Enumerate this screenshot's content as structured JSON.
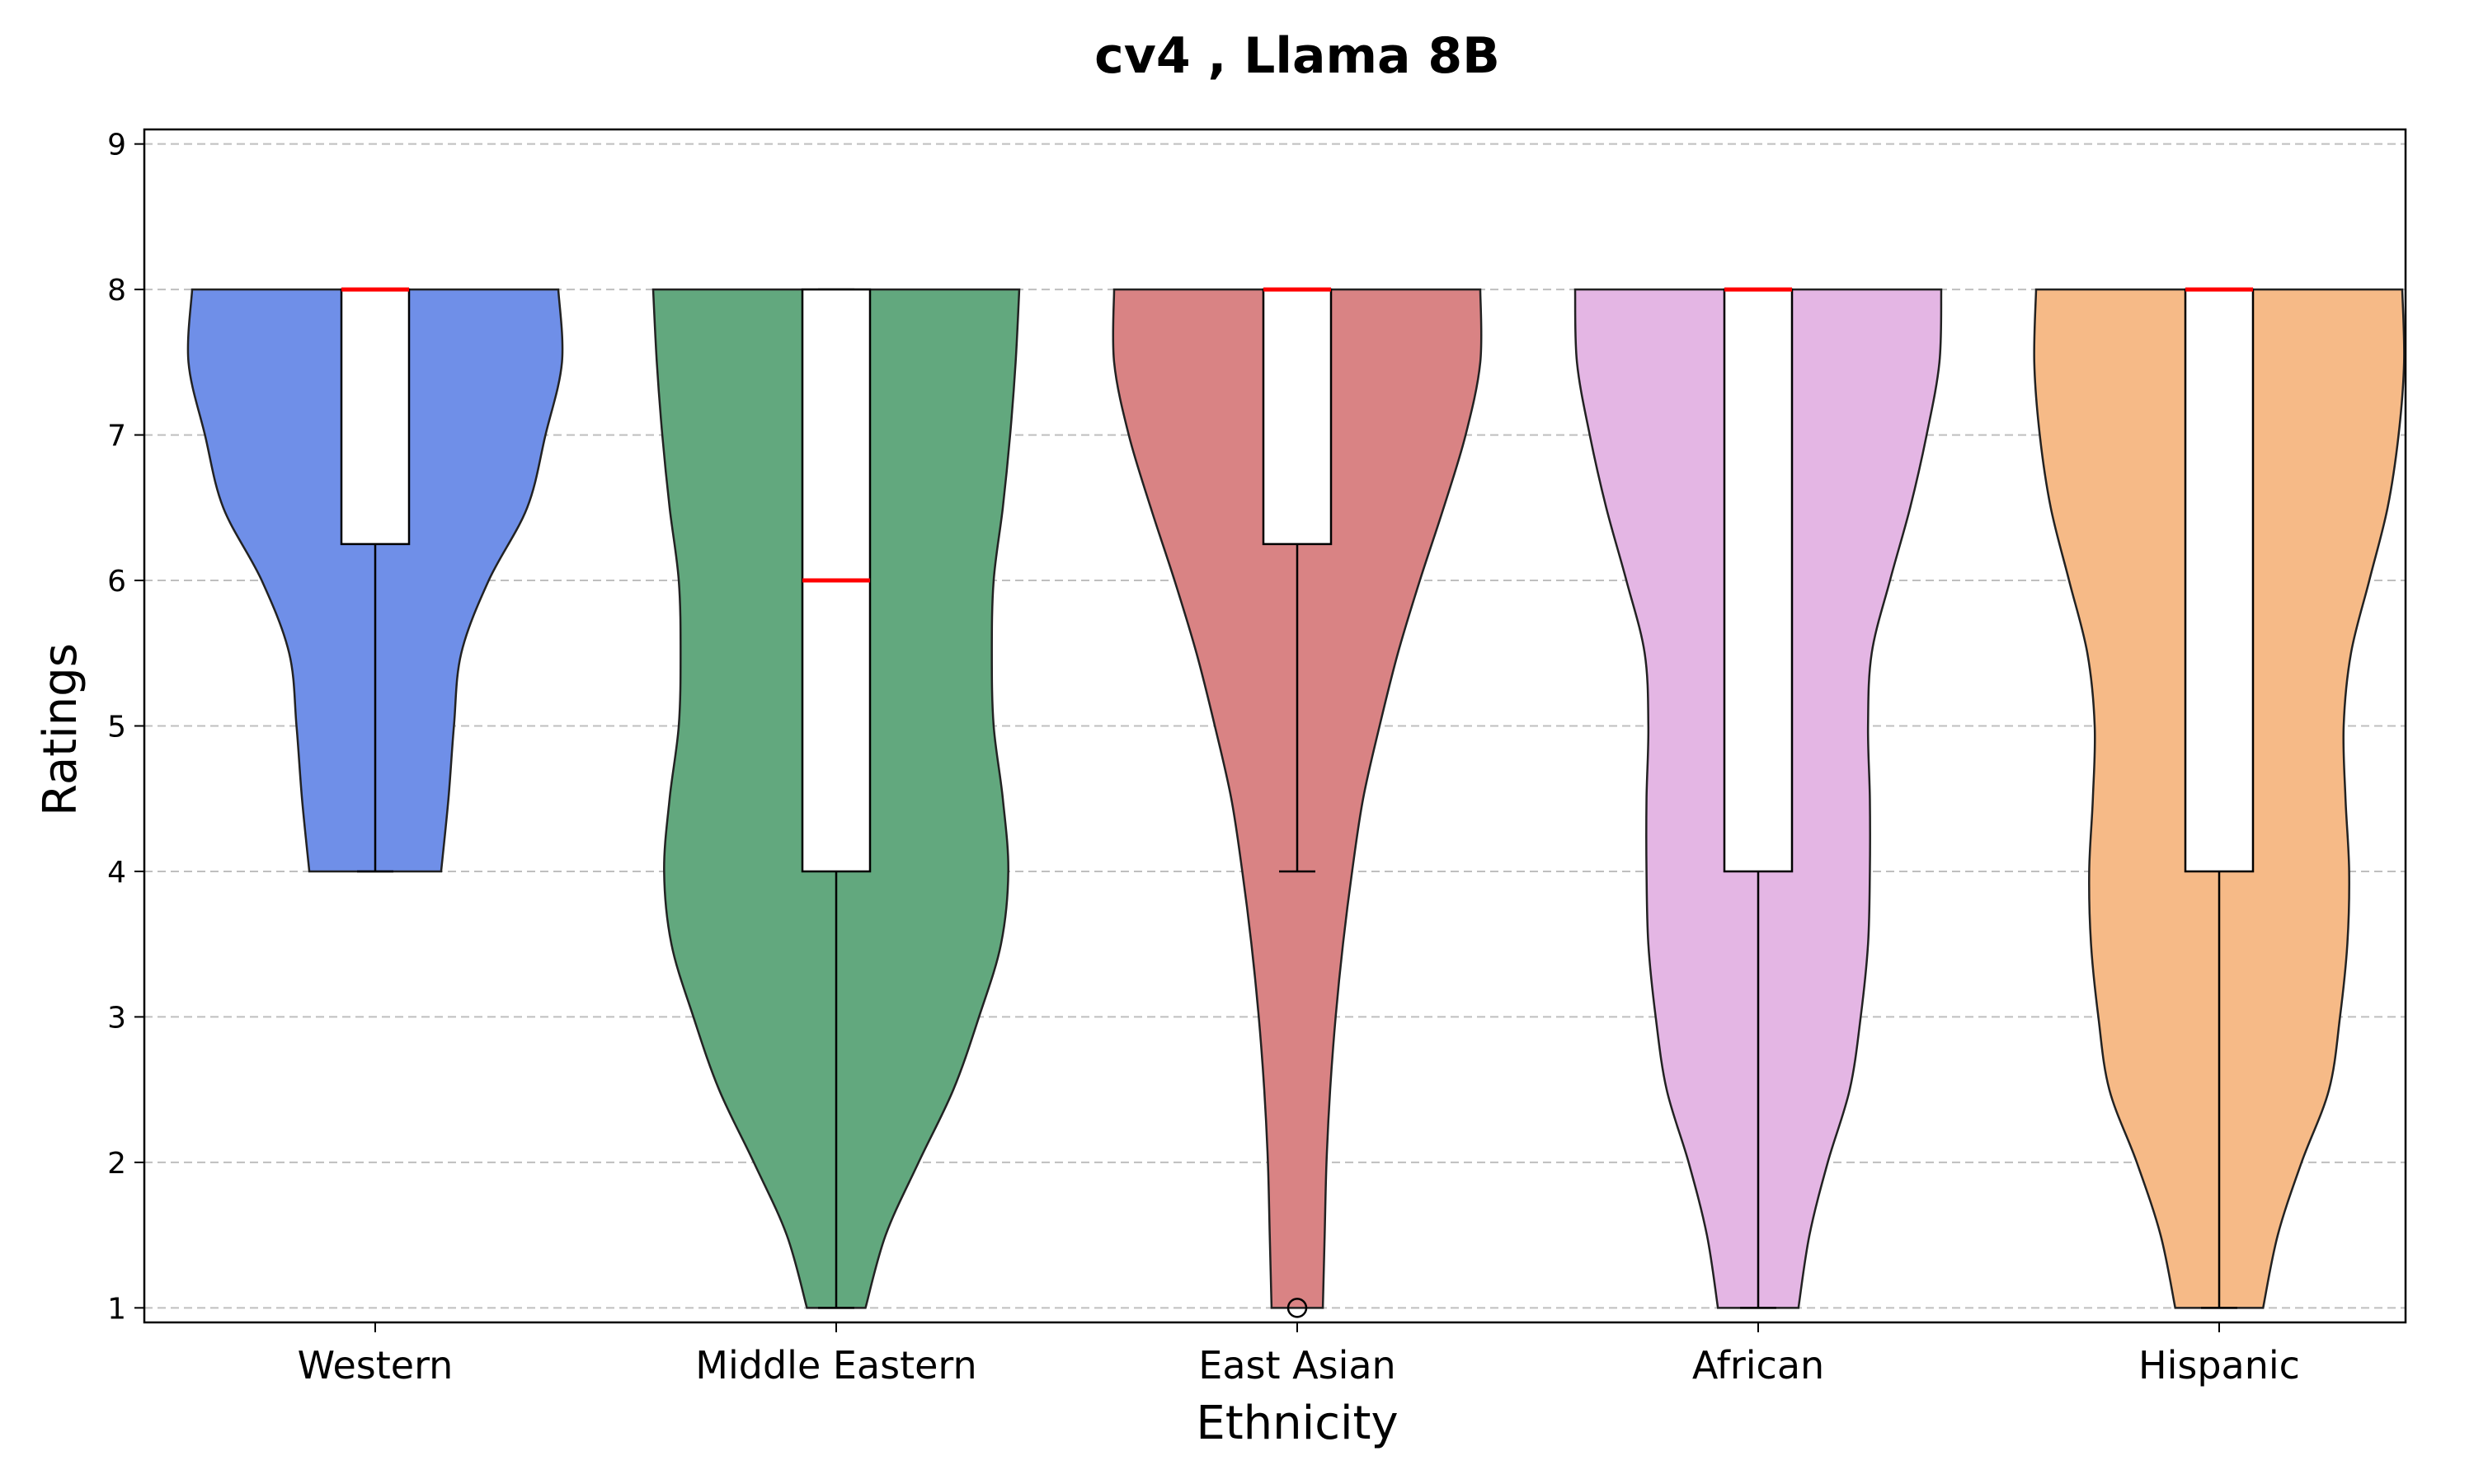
{
  "chart_data": {
    "type": "violin",
    "title": "cv4 , Llama 8B",
    "xlabel": "Ethnicity",
    "ylabel": "Ratings",
    "ylim": [
      0.9,
      9.1
    ],
    "yticks": [
      "1",
      "2",
      "3",
      "4",
      "5",
      "6",
      "7",
      "8",
      "9"
    ],
    "grid": "horizontal-dashed",
    "categories": [
      "Western",
      "Middle Eastern",
      "East Asian",
      "African",
      "Hispanic"
    ],
    "colors": [
      "#6f8fe8",
      "#62a87e",
      "#d98384",
      "#e4b6e4",
      "#f6ba87"
    ],
    "series": [
      {
        "name": "Western",
        "box": {
          "whisker_low": 4,
          "q1": 6.25,
          "median": 8,
          "q3": 8,
          "whisker_high": 8
        },
        "outliers": [],
        "density": [
          [
            4,
            0.36
          ],
          [
            4.5,
            0.4
          ],
          [
            5,
            0.43
          ],
          [
            5.5,
            0.47
          ],
          [
            6,
            0.62
          ],
          [
            6.5,
            0.83
          ],
          [
            7,
            0.93
          ],
          [
            7.5,
            1.02
          ],
          [
            8,
            1.0
          ]
        ]
      },
      {
        "name": "Middle Eastern",
        "box": {
          "whisker_low": 1,
          "q1": 4,
          "median": 6,
          "q3": 8,
          "whisker_high": 8
        },
        "outliers": [],
        "density": [
          [
            1,
            0.16
          ],
          [
            1.5,
            0.27
          ],
          [
            2,
            0.45
          ],
          [
            2.5,
            0.64
          ],
          [
            3,
            0.78
          ],
          [
            3.5,
            0.9
          ],
          [
            4,
            0.94
          ],
          [
            4.5,
            0.91
          ],
          [
            5,
            0.86
          ],
          [
            5.5,
            0.85
          ],
          [
            6,
            0.86
          ],
          [
            6.5,
            0.91
          ],
          [
            7,
            0.95
          ],
          [
            7.5,
            0.98
          ],
          [
            8,
            1.0
          ]
        ]
      },
      {
        "name": "East Asian",
        "box": {
          "whisker_low": 4,
          "q1": 6.25,
          "median": 8,
          "q3": 8,
          "whisker_high": 8
        },
        "outliers": [
          1
        ],
        "density": [
          [
            1,
            0.14
          ],
          [
            1.5,
            0.15
          ],
          [
            2,
            0.16
          ],
          [
            2.5,
            0.18
          ],
          [
            3,
            0.21
          ],
          [
            3.5,
            0.25
          ],
          [
            4,
            0.3
          ],
          [
            4.5,
            0.36
          ],
          [
            5,
            0.45
          ],
          [
            5.5,
            0.55
          ],
          [
            6,
            0.67
          ],
          [
            6.5,
            0.8
          ],
          [
            7,
            0.92
          ],
          [
            7.5,
            1.0
          ],
          [
            8,
            1.0
          ]
        ]
      },
      {
        "name": "African",
        "box": {
          "whisker_low": 1,
          "q1": 4,
          "median": 8,
          "q3": 8,
          "whisker_high": 8
        },
        "outliers": [],
        "density": [
          [
            1,
            0.22
          ],
          [
            1.5,
            0.28
          ],
          [
            2,
            0.38
          ],
          [
            2.5,
            0.5
          ],
          [
            3,
            0.56
          ],
          [
            3.5,
            0.6
          ],
          [
            4,
            0.61
          ],
          [
            4.5,
            0.61
          ],
          [
            5,
            0.6
          ],
          [
            5.5,
            0.62
          ],
          [
            6,
            0.72
          ],
          [
            6.5,
            0.83
          ],
          [
            7,
            0.92
          ],
          [
            7.5,
            0.99
          ],
          [
            8,
            1.0
          ]
        ]
      },
      {
        "name": "Hispanic",
        "box": {
          "whisker_low": 1,
          "q1": 4,
          "median": 8,
          "q3": 8,
          "whisker_high": 8
        },
        "outliers": [],
        "density": [
          [
            1,
            0.24
          ],
          [
            1.5,
            0.32
          ],
          [
            2,
            0.45
          ],
          [
            2.5,
            0.6
          ],
          [
            3,
            0.66
          ],
          [
            3.5,
            0.7
          ],
          [
            4,
            0.71
          ],
          [
            4.5,
            0.69
          ],
          [
            5,
            0.68
          ],
          [
            5.5,
            0.72
          ],
          [
            6,
            0.82
          ],
          [
            6.5,
            0.92
          ],
          [
            7,
            0.98
          ],
          [
            7.5,
            1.01
          ],
          [
            8,
            1.0
          ]
        ]
      }
    ]
  }
}
